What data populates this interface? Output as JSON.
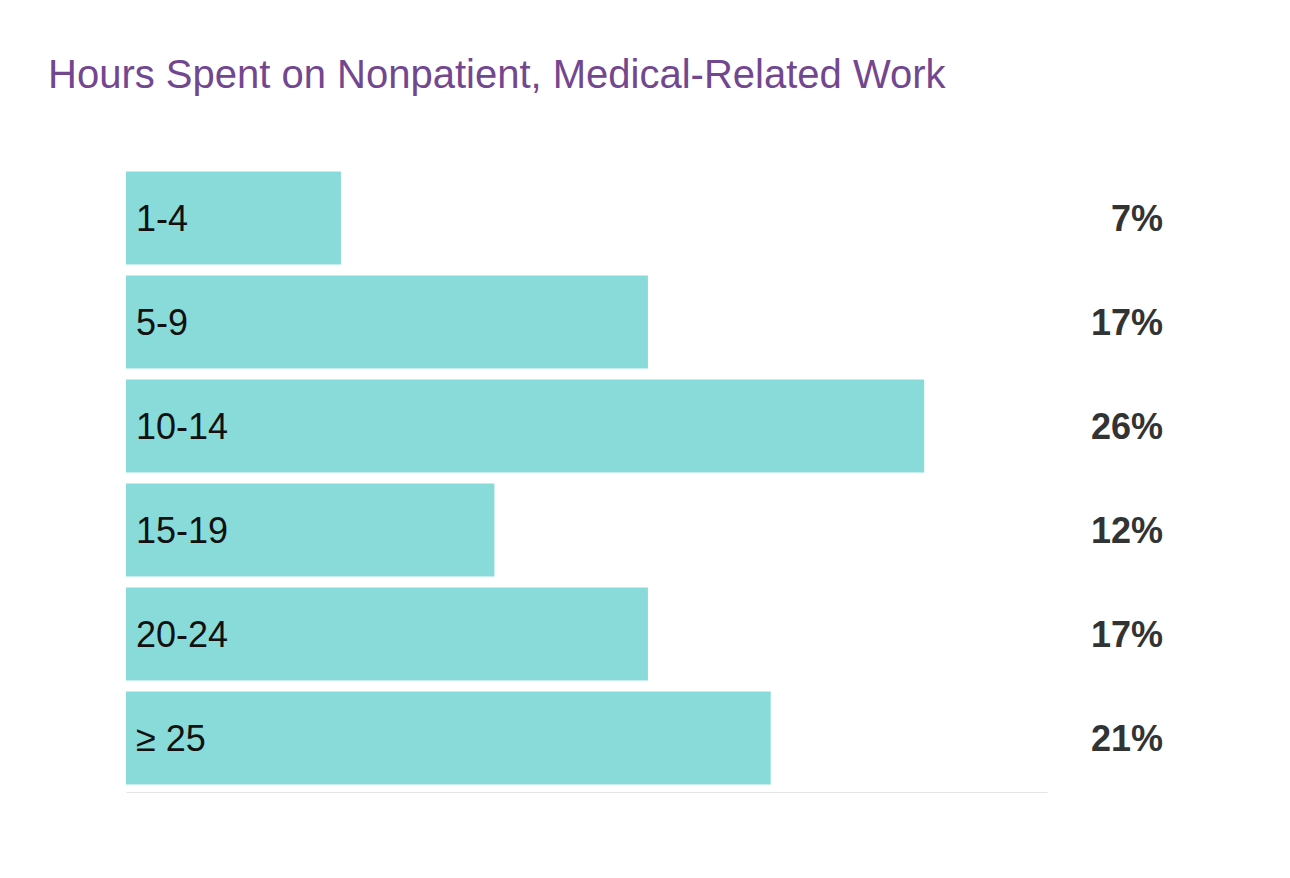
{
  "chart_data": {
    "type": "bar",
    "title": "Hours Spent on Nonpatient, Medical-Related Work",
    "orientation": "horizontal",
    "categories": [
      "1-4",
      "5-9",
      "10-14",
      "15-19",
      "20-24",
      "≥ 25"
    ],
    "values": [
      7,
      17,
      26,
      12,
      17,
      21
    ],
    "value_labels": [
      "7%",
      "17%",
      "26%",
      "12%",
      "17%",
      "21%"
    ],
    "data_labels": true,
    "color": "#88dbd9",
    "xlim": [
      0,
      30
    ],
    "xticks": [],
    "tick_labels": "y",
    "grid": false
  }
}
